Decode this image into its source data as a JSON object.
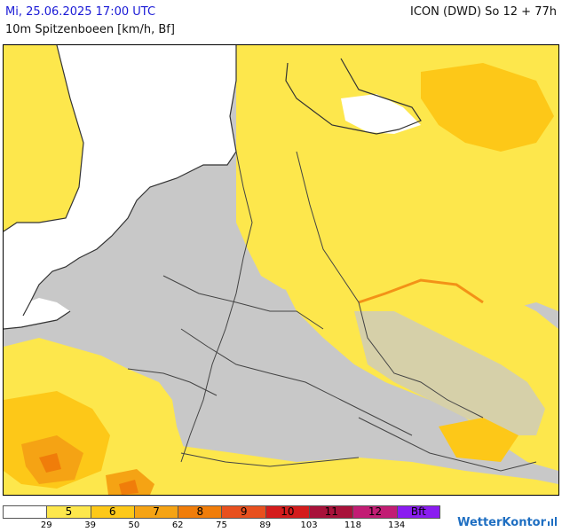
{
  "header": {
    "date": "Mi, 25.06.2025 17:00 UTC",
    "model": "ICON (DWD) So 12 + 77h",
    "parameter": "10m Spitzenboeen [km/h, Bf]"
  },
  "legend": {
    "cells": [
      {
        "label": "",
        "color": "#ffffff"
      },
      {
        "label": "5",
        "color": "#fde74c"
      },
      {
        "label": "6",
        "color": "#fdc818"
      },
      {
        "label": "7",
        "color": "#f5a314"
      },
      {
        "label": "8",
        "color": "#f07d0a"
      },
      {
        "label": "9",
        "color": "#e8501e"
      },
      {
        "label": "10",
        "color": "#d41c1c"
      },
      {
        "label": "11",
        "color": "#a8123a"
      },
      {
        "label": "12",
        "color": "#c21d74"
      },
      {
        "label": "Bft",
        "color": "#8a1cf0"
      }
    ],
    "ticks": [
      "29",
      "39",
      "50",
      "62",
      "75",
      "89",
      "103",
      "118",
      "134"
    ]
  },
  "map": {
    "colors": {
      "land_calm": "#c8c8c8",
      "sea": "#ffffff",
      "bft5": "#fde74c",
      "bft6": "#fdc818",
      "bft7": "#f5a314",
      "bft8": "#f07d0a",
      "border": "#444444",
      "coast": "#333333"
    }
  },
  "brand": {
    "name": "WetterKontor",
    "icon": "wetterkontor-logo-icon"
  }
}
